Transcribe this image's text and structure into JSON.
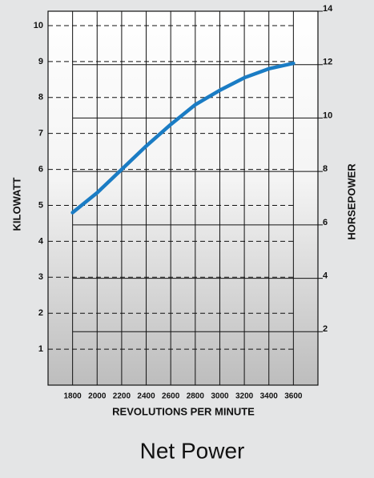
{
  "chart_data": {
    "type": "line",
    "title": "Net Power",
    "x_label": "REVOLUTIONS PER MINUTE",
    "y_label": "KILOWATT",
    "y2_label": "HORSEPOWER",
    "x": [
      1800,
      2000,
      2200,
      2400,
      2600,
      2800,
      3000,
      3200,
      3400,
      3600
    ],
    "series": [
      {
        "color": "#1a7cc4",
        "values": [
          4.8,
          5.35,
          6.0,
          6.65,
          7.25,
          7.8,
          8.2,
          8.55,
          8.8,
          8.95
        ]
      }
    ],
    "xlim": [
      1600,
      3800
    ],
    "xticks": [
      1800,
      2000,
      2200,
      2400,
      2600,
      2800,
      3000,
      3200,
      3400,
      3600
    ],
    "ylim": [
      0,
      10.4
    ],
    "yticks": [
      1,
      2,
      3,
      4,
      5,
      6,
      7,
      8,
      9,
      10
    ],
    "y2lim": [
      0,
      14
    ],
    "y2ticks": [
      2,
      4,
      6,
      8,
      10,
      12,
      14
    ],
    "grid": true
  }
}
